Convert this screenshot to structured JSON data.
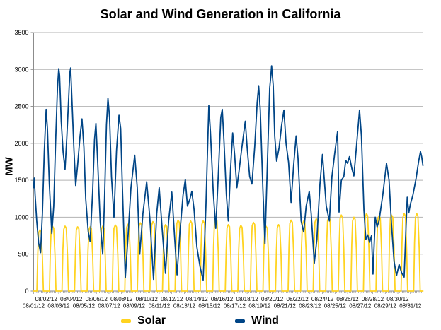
{
  "chart_data": {
    "type": "line",
    "title": "Solar and Wind Generation in California",
    "xlabel": "",
    "ylabel": "MW",
    "ylim": [
      0,
      3500
    ],
    "y_ticks": [
      0,
      500,
      1000,
      1500,
      2000,
      2500,
      3000,
      3500
    ],
    "grid": "horizontal",
    "legend_position": "bottom",
    "x_range_days": 31,
    "x_unit": "days since 2012-08-01 00:00 (data spans Aug 1 - Aug 31, 2012)",
    "x_tick_label_layout": "staggered: even days upper row, odd days lower row",
    "x_tick_labels": [
      "08/01/12",
      "08/02/12",
      "08/03/12",
      "08/04/12",
      "08/05/12",
      "08/06/12",
      "08/07/12",
      "08/08/12",
      "08/09/12",
      "08/10/12",
      "08/11/12",
      "08/12/12",
      "08/13/12",
      "08/14/12",
      "08/15/12",
      "08/16/12",
      "08/17/12",
      "08/18/12",
      "08/19/12",
      "08/20/12",
      "08/21/12",
      "08/22/12",
      "08/23/12",
      "08/24/12",
      "08/25/12",
      "08/26/12",
      "08/27/12",
      "08/28/12",
      "08/29/12",
      "08/30/12",
      "08/31/12"
    ],
    "colors": {
      "grid": "#b3b3b3",
      "axis": "#8c8c8c",
      "text": "#000000",
      "background": "#ffffff"
    },
    "series": [
      {
        "name": "Solar",
        "color": "#FFD320",
        "shape": "daily hump, zero at night",
        "daily_peaks_mw": [
          830,
          880,
          880,
          870,
          870,
          880,
          895,
          905,
          925,
          940,
          900,
          960,
          950,
          950,
          980,
          900,
          890,
          930,
          880,
          900,
          960,
          950,
          980,
          1000,
          1030,
          1000,
          1050,
          1020,
          1030,
          1050,
          1050
        ],
        "day_profile": [
          [
            0.26,
            0
          ],
          [
            0.33,
            0.62
          ],
          [
            0.4,
            0.95
          ],
          [
            0.5,
            1.0
          ],
          [
            0.6,
            0.97
          ],
          [
            0.7,
            0.55
          ],
          [
            0.78,
            0
          ]
        ]
      },
      {
        "name": "Wind",
        "color": "#004586",
        "points": [
          [
            0,
            1400
          ],
          [
            0.05,
            1530
          ],
          [
            0.12,
            1300
          ],
          [
            0.25,
            950
          ],
          [
            0.4,
            650
          ],
          [
            0.55,
            520
          ],
          [
            0.7,
            1050
          ],
          [
            0.85,
            1900
          ],
          [
            1,
            2460
          ],
          [
            1.1,
            2200
          ],
          [
            1.25,
            1450
          ],
          [
            1.45,
            780
          ],
          [
            1.6,
            1150
          ],
          [
            1.75,
            2000
          ],
          [
            1.9,
            2750
          ],
          [
            2,
            3010
          ],
          [
            2.07,
            2920
          ],
          [
            2.2,
            2300
          ],
          [
            2.35,
            1880
          ],
          [
            2.5,
            1650
          ],
          [
            2.65,
            2100
          ],
          [
            2.8,
            2650
          ],
          [
            2.88,
            2950
          ],
          [
            2.95,
            3020
          ],
          [
            3.05,
            2600
          ],
          [
            3.2,
            1950
          ],
          [
            3.35,
            1430
          ],
          [
            3.5,
            1700
          ],
          [
            3.7,
            2100
          ],
          [
            3.85,
            2330
          ],
          [
            4,
            1950
          ],
          [
            4.15,
            1250
          ],
          [
            4.35,
            800
          ],
          [
            4.5,
            670
          ],
          [
            4.7,
            1350
          ],
          [
            4.85,
            2050
          ],
          [
            4.96,
            2270
          ],
          [
            5.1,
            1750
          ],
          [
            5.3,
            950
          ],
          [
            5.5,
            500
          ],
          [
            5.65,
            1250
          ],
          [
            5.8,
            2250
          ],
          [
            5.92,
            2610
          ],
          [
            6.05,
            2350
          ],
          [
            6.2,
            1550
          ],
          [
            6.4,
            1000
          ],
          [
            6.6,
            1900
          ],
          [
            6.8,
            2380
          ],
          [
            6.93,
            2200
          ],
          [
            7.05,
            1500
          ],
          [
            7.3,
            180
          ],
          [
            7.5,
            700
          ],
          [
            7.75,
            1400
          ],
          [
            8.05,
            1840
          ],
          [
            8.25,
            1400
          ],
          [
            8.45,
            500
          ],
          [
            8.7,
            1050
          ],
          [
            9,
            1480
          ],
          [
            9.25,
            1000
          ],
          [
            9.55,
            160
          ],
          [
            9.8,
            1050
          ],
          [
            10,
            1400
          ],
          [
            10.25,
            800
          ],
          [
            10.5,
            240
          ],
          [
            10.75,
            950
          ],
          [
            11,
            1340
          ],
          [
            11.2,
            800
          ],
          [
            11.42,
            220
          ],
          [
            11.65,
            800
          ],
          [
            11.9,
            1300
          ],
          [
            12.08,
            1510
          ],
          [
            12.25,
            1150
          ],
          [
            12.45,
            1250
          ],
          [
            12.6,
            1350
          ],
          [
            12.78,
            1100
          ],
          [
            13,
            600
          ],
          [
            13.25,
            330
          ],
          [
            13.5,
            150
          ],
          [
            13.72,
            1150
          ],
          [
            13.95,
            2510
          ],
          [
            14.08,
            2150
          ],
          [
            14.3,
            1350
          ],
          [
            14.5,
            850
          ],
          [
            14.7,
            1550
          ],
          [
            14.9,
            2350
          ],
          [
            15.02,
            2460
          ],
          [
            15.15,
            2050
          ],
          [
            15.35,
            1300
          ],
          [
            15.5,
            950
          ],
          [
            15.68,
            1650
          ],
          [
            15.85,
            2140
          ],
          [
            16,
            1850
          ],
          [
            16.18,
            1400
          ],
          [
            16.35,
            1620
          ],
          [
            16.55,
            1900
          ],
          [
            16.85,
            2300
          ],
          [
            17,
            1950
          ],
          [
            17.2,
            1550
          ],
          [
            17.38,
            1450
          ],
          [
            17.6,
            1950
          ],
          [
            17.8,
            2550
          ],
          [
            17.92,
            2780
          ],
          [
            18.05,
            2450
          ],
          [
            18.25,
            1400
          ],
          [
            18.42,
            640
          ],
          [
            18.6,
            1650
          ],
          [
            18.8,
            2750
          ],
          [
            18.88,
            2900
          ],
          [
            18.95,
            3050
          ],
          [
            19.08,
            2780
          ],
          [
            19.2,
            2100
          ],
          [
            19.35,
            1760
          ],
          [
            19.55,
            1950
          ],
          [
            19.75,
            2250
          ],
          [
            19.93,
            2450
          ],
          [
            20.1,
            2000
          ],
          [
            20.3,
            1740
          ],
          [
            20.5,
            1200
          ],
          [
            20.7,
            1700
          ],
          [
            20.9,
            2100
          ],
          [
            21.05,
            1800
          ],
          [
            21.3,
            950
          ],
          [
            21.5,
            800
          ],
          [
            21.7,
            1150
          ],
          [
            21.95,
            1350
          ],
          [
            22.1,
            1050
          ],
          [
            22.35,
            380
          ],
          [
            22.55,
            700
          ],
          [
            22.8,
            1450
          ],
          [
            23,
            1850
          ],
          [
            23.15,
            1500
          ],
          [
            23.3,
            1150
          ],
          [
            23.55,
            950
          ],
          [
            23.75,
            1550
          ],
          [
            24,
            1900
          ],
          [
            24.2,
            2160
          ],
          [
            24.32,
            1070
          ],
          [
            24.5,
            1500
          ],
          [
            24.7,
            1550
          ],
          [
            24.85,
            1770
          ],
          [
            25,
            1730
          ],
          [
            25.15,
            1820
          ],
          [
            25.35,
            1650
          ],
          [
            25.5,
            1560
          ],
          [
            25.7,
            1950
          ],
          [
            25.95,
            2450
          ],
          [
            26.1,
            2100
          ],
          [
            26.3,
            1100
          ],
          [
            26.45,
            700
          ],
          [
            26.6,
            760
          ],
          [
            26.75,
            660
          ],
          [
            26.9,
            750
          ],
          [
            27.02,
            230
          ],
          [
            27.2,
            1000
          ],
          [
            27.35,
            870
          ],
          [
            27.5,
            950
          ],
          [
            27.8,
            1300
          ],
          [
            28.1,
            1730
          ],
          [
            28.3,
            1500
          ],
          [
            28.5,
            900
          ],
          [
            28.7,
            400
          ],
          [
            28.9,
            210
          ],
          [
            29.1,
            360
          ],
          [
            29.3,
            250
          ],
          [
            29.5,
            190
          ],
          [
            29.65,
            850
          ],
          [
            29.75,
            1270
          ],
          [
            29.87,
            1060
          ],
          [
            30,
            1180
          ],
          [
            30.2,
            1300
          ],
          [
            30.45,
            1520
          ],
          [
            30.65,
            1750
          ],
          [
            30.8,
            1890
          ],
          [
            30.9,
            1820
          ],
          [
            31,
            1700
          ]
        ]
      }
    ],
    "legend": [
      {
        "label": "Solar",
        "swatch_color": "#FFD320"
      },
      {
        "label": "Wind",
        "swatch_color": "#004586"
      }
    ]
  }
}
